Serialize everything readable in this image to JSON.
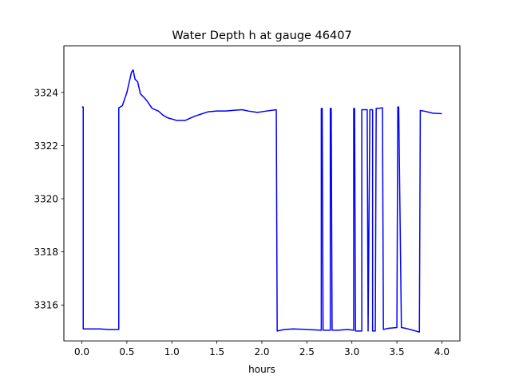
{
  "chart_data": {
    "type": "line",
    "title": "Water Depth h at gauge 46407",
    "xlabel": "hours",
    "ylabel": "",
    "xlim": [
      -0.2,
      4.2
    ],
    "ylim": [
      3314.65,
      3325.75
    ],
    "xticks": [
      0.0,
      0.5,
      1.0,
      1.5,
      2.0,
      2.5,
      3.0,
      3.5,
      4.0
    ],
    "xtick_labels": [
      "0.0",
      "0.5",
      "1.0",
      "1.5",
      "2.0",
      "2.5",
      "3.0",
      "3.5",
      "4.0"
    ],
    "yticks": [
      3316,
      3318,
      3320,
      3322,
      3324
    ],
    "ytick_labels": [
      "3316",
      "3318",
      "3320",
      "3322",
      "3324"
    ],
    "grid": false,
    "series": [
      {
        "color": "#0000ff",
        "x": [
          0.0,
          0.015,
          0.015,
          0.1,
          0.2,
          0.3,
          0.41,
          0.41,
          0.45,
          0.5,
          0.55,
          0.57,
          0.59,
          0.62,
          0.65,
          0.68,
          0.72,
          0.78,
          0.85,
          0.9,
          0.95,
          1.05,
          1.15,
          1.25,
          1.4,
          1.5,
          1.6,
          1.7,
          1.78,
          1.85,
          1.95,
          2.05,
          2.16,
          2.17,
          2.25,
          2.35,
          2.5,
          2.66,
          2.66,
          2.67,
          2.68,
          2.68,
          2.75,
          2.76,
          2.76,
          2.77,
          2.78,
          2.85,
          2.95,
          3.02,
          3.02,
          3.03,
          3.04,
          3.1,
          3.11,
          3.11,
          3.17,
          3.18,
          3.18,
          3.2,
          3.23,
          3.23,
          3.26,
          3.27,
          3.28,
          3.34,
          3.35,
          3.4,
          3.5,
          3.51,
          3.52,
          3.55,
          3.6,
          3.68,
          3.75,
          3.76,
          3.8,
          3.9,
          4.0
        ],
        "y": [
          3323.45,
          3323.45,
          3315.1,
          3315.1,
          3315.1,
          3315.08,
          3315.08,
          3323.42,
          3323.5,
          3324.0,
          3324.75,
          3324.85,
          3324.5,
          3324.4,
          3323.95,
          3323.85,
          3323.7,
          3323.4,
          3323.3,
          3323.15,
          3323.05,
          3322.95,
          3322.95,
          3323.1,
          3323.27,
          3323.3,
          3323.3,
          3323.33,
          3323.35,
          3323.3,
          3323.25,
          3323.3,
          3323.35,
          3315.02,
          3315.08,
          3315.1,
          3315.08,
          3315.05,
          3323.4,
          3323.4,
          3315.05,
          3315.05,
          3315.05,
          3315.05,
          3323.4,
          3323.4,
          3315.05,
          3315.05,
          3315.08,
          3315.05,
          3323.4,
          3323.4,
          3315.02,
          3315.02,
          3315.02,
          3323.35,
          3323.35,
          3315.02,
          3315.02,
          3323.35,
          3323.35,
          3315.02,
          3315.02,
          3323.4,
          3323.4,
          3323.42,
          3315.08,
          3315.12,
          3315.15,
          3323.45,
          3323.45,
          3315.15,
          3315.12,
          3315.05,
          3314.98,
          3323.32,
          3323.3,
          3323.22,
          3323.2
        ]
      }
    ]
  }
}
